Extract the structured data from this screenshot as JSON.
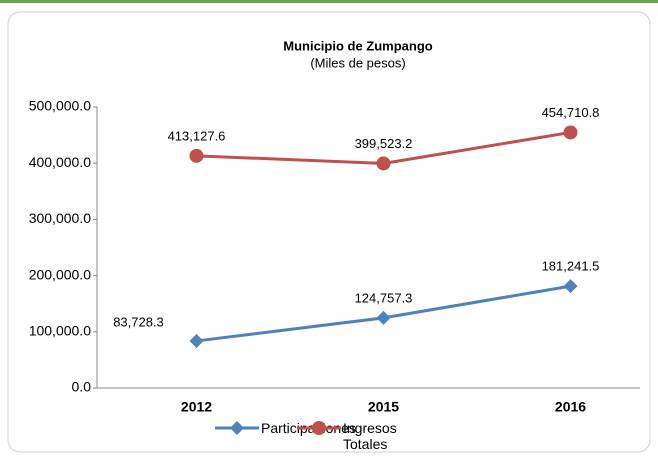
{
  "chart_data": {
    "type": "line",
    "title": "Municipio de Zumpango",
    "subtitle": "(Miles de pesos)",
    "categories": [
      "2012",
      "2015",
      "2016"
    ],
    "series": [
      {
        "name": "Participaciones",
        "color": "#4f81bd",
        "marker": "diamond",
        "values": [
          83728.3,
          124757.3,
          181241.5
        ],
        "value_labels": [
          "83,728.3",
          "124,757.3",
          "181,241.5"
        ]
      },
      {
        "name": "Ingresos Totales",
        "color": "#c0504d",
        "marker": "circle",
        "values": [
          413127.6,
          399523.2,
          454710.8
        ],
        "value_labels": [
          "413,127.6",
          "399,523.2",
          "454,710.8"
        ]
      }
    ],
    "ylim": [
      0,
      500000
    ],
    "yticks": [
      {
        "value": 0,
        "label": "0.0"
      },
      {
        "value": 100000,
        "label": "100,000.0"
      },
      {
        "value": 200000,
        "label": "200,000.0"
      },
      {
        "value": 300000,
        "label": "300,000.0"
      },
      {
        "value": 400000,
        "label": "400,000.0"
      },
      {
        "value": 500000,
        "label": "500,000.0"
      }
    ],
    "grid": false,
    "legend": "bottom"
  }
}
